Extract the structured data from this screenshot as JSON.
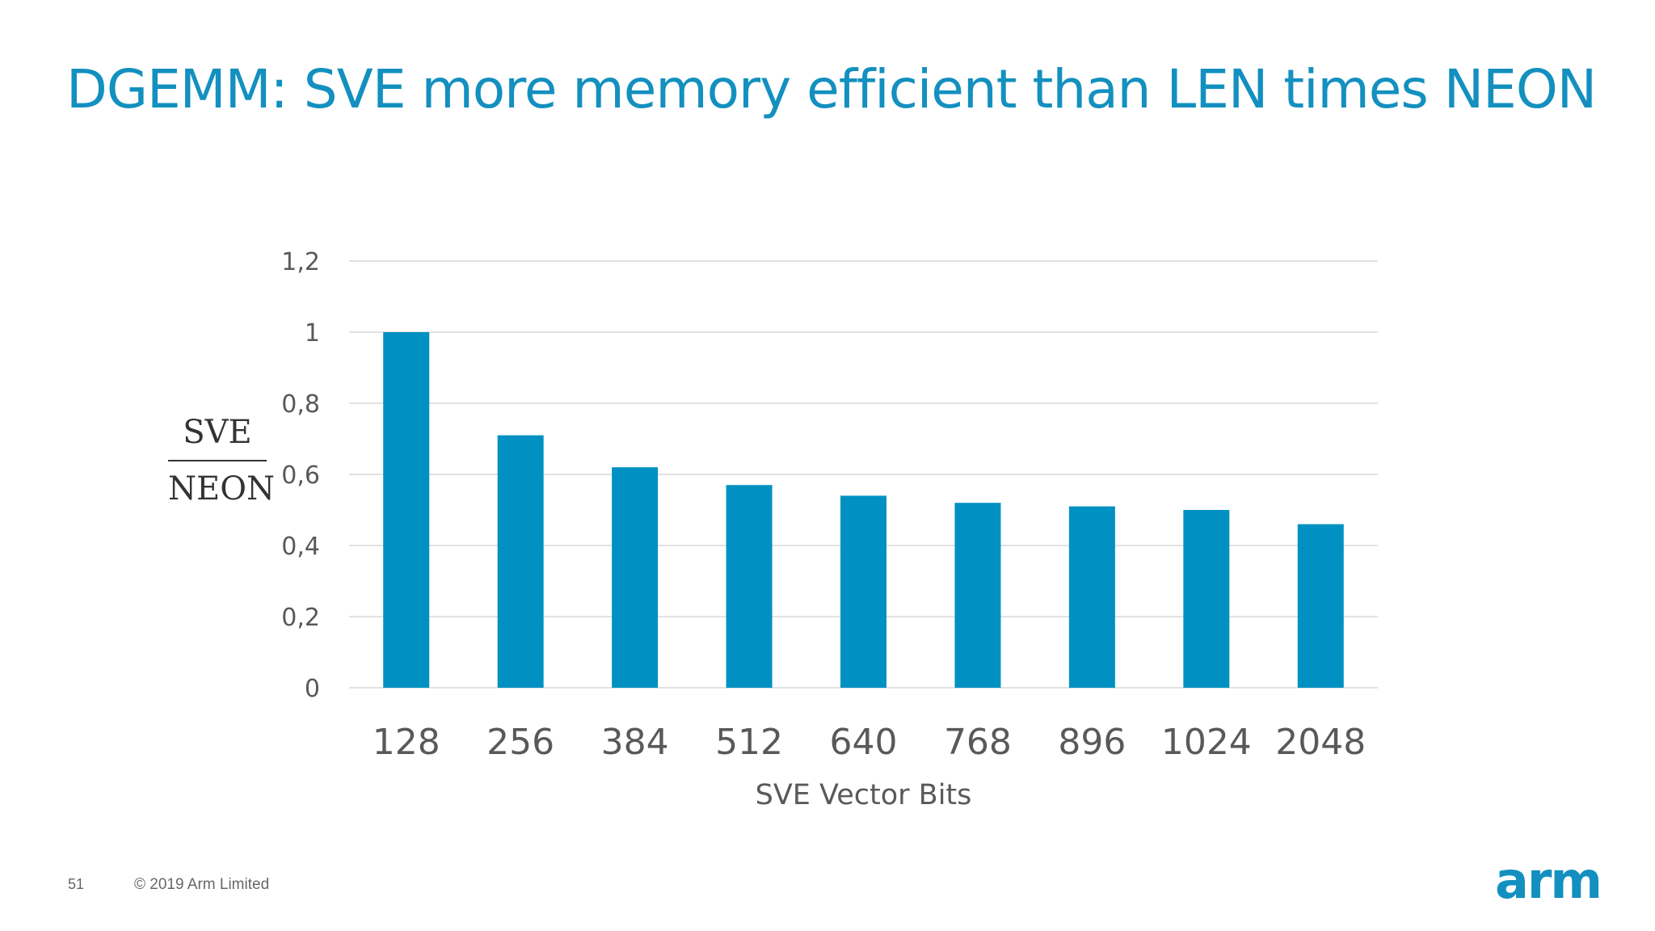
{
  "title": "DGEMM: SVE more memory efficient than LEN times NEON",
  "footer": {
    "page_number": "51",
    "copyright": "© 2019 Arm Limited"
  },
  "logo": "arm",
  "colors": {
    "title": "#1390bf",
    "bar": "#0091c2",
    "grid": "#d9d9d9",
    "axis_text": "#595959",
    "logo": "#1390bf"
  },
  "chart_data": {
    "type": "bar",
    "categories": [
      "128",
      "256",
      "384",
      "512",
      "640",
      "768",
      "896",
      "1024",
      "2048"
    ],
    "values": [
      1.0,
      0.71,
      0.62,
      0.57,
      0.54,
      0.52,
      0.51,
      0.5,
      0.46
    ],
    "xlabel": "SVE Vector Bits",
    "ylabel_numerator": "SVE",
    "ylabel_denominator": "NEON",
    "ylim": [
      0,
      1.2
    ],
    "yticks": [
      0,
      0.2,
      0.4,
      0.6,
      0.8,
      1.0,
      1.2
    ],
    "ytick_labels": [
      "0",
      "0,2",
      "0,4",
      "0,6",
      "0,8",
      "1",
      "1,2"
    ],
    "grid": true,
    "legend": "none"
  }
}
